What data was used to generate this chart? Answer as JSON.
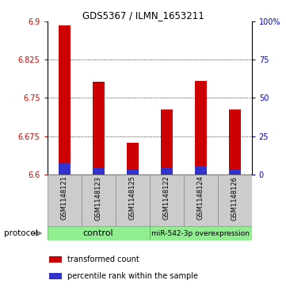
{
  "title": "GDS5367 / ILMN_1653211",
  "samples": [
    "GSM1148121",
    "GSM1148123",
    "GSM1148125",
    "GSM1148122",
    "GSM1148124",
    "GSM1148126"
  ],
  "red_values": [
    6.893,
    6.782,
    6.662,
    6.727,
    6.784,
    6.727
  ],
  "blue_values": [
    6.623,
    6.613,
    6.608,
    6.613,
    6.617,
    6.611
  ],
  "y_min": 6.6,
  "y_max": 6.9,
  "y_ticks_left": [
    6.6,
    6.675,
    6.75,
    6.825,
    6.9
  ],
  "y_ticks_right": [
    0,
    25,
    50,
    75,
    100
  ],
  "bar_color": "#cc0000",
  "blue_color": "#3333cc",
  "bar_width": 0.35,
  "legend_red": "transformed count",
  "legend_blue": "percentile rank within the sample",
  "tick_color_left": "#cc0000",
  "tick_color_right": "#0000cc",
  "label_bg": "#cccccc",
  "group_bg": "#90EE90",
  "group_labels": [
    "control",
    "miR-542-3p overexpression"
  ],
  "group_font_sizes": [
    8,
    6.5
  ]
}
